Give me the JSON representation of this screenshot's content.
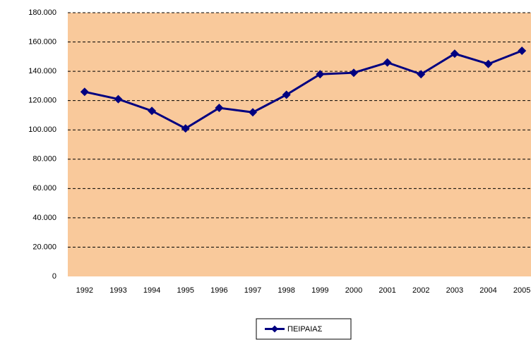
{
  "chart_data": {
    "type": "line",
    "categories": [
      "1992",
      "1993",
      "1994",
      "1995",
      "1996",
      "1997",
      "1998",
      "1999",
      "2000",
      "2001",
      "2002",
      "2003",
      "2004",
      "2005"
    ],
    "series": [
      {
        "name": "ΠΕΙΡΑΙΑΣ",
        "color": "#000080",
        "values": [
          126000,
          121000,
          113000,
          101000,
          115000,
          112000,
          124000,
          138000,
          139000,
          146000,
          138000,
          152000,
          145000,
          154000
        ]
      }
    ],
    "ylim": [
      0,
      180000
    ],
    "yticks": [
      0,
      {
        "value": 20000,
        "label": "20.000"
      },
      {
        "value": 40000,
        "label": "40.000"
      },
      {
        "value": 60000,
        "label": "60.000"
      },
      {
        "value": 80000,
        "label": "80.000"
      },
      {
        "value": 100000,
        "label": "100.000"
      },
      {
        "value": 120000,
        "label": "120.000"
      },
      {
        "value": 140000,
        "label": "140.000"
      },
      {
        "value": 160000,
        "label": "160.000"
      },
      {
        "value": 180000,
        "label": "180.000"
      }
    ],
    "grid": true,
    "legend": "bottom"
  }
}
